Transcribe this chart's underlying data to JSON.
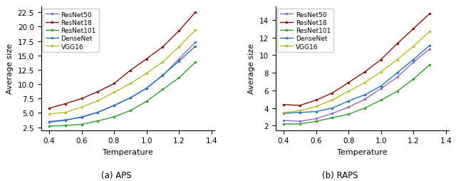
{
  "temperature": [
    0.4,
    0.5,
    0.6,
    0.7,
    0.8,
    0.9,
    1.0,
    1.1,
    1.2,
    1.3
  ],
  "aps": {
    "ResNet50": [
      3.5,
      3.8,
      4.2,
      5.1,
      6.3,
      7.6,
      9.3,
      11.5,
      14.4,
      17.3
    ],
    "ResNet18": [
      5.8,
      6.6,
      7.5,
      8.7,
      10.1,
      12.4,
      14.4,
      16.5,
      19.3,
      22.5
    ],
    "ResNet101": [
      2.7,
      2.8,
      3.0,
      3.6,
      4.3,
      5.4,
      7.0,
      9.1,
      11.1,
      13.8
    ],
    "DenseNet": [
      3.4,
      3.7,
      4.3,
      5.1,
      6.3,
      7.6,
      9.3,
      11.6,
      14.0,
      16.6
    ],
    "VGG16": [
      4.8,
      5.1,
      6.0,
      7.1,
      8.6,
      10.1,
      11.9,
      13.9,
      16.5,
      19.4
    ]
  },
  "raps": {
    "ResNet50": [
      2.6,
      2.5,
      2.8,
      3.4,
      4.1,
      5.0,
      6.2,
      7.5,
      9.2,
      10.7
    ],
    "ResNet18": [
      4.4,
      4.3,
      4.9,
      5.7,
      6.9,
      8.1,
      9.5,
      11.3,
      13.0,
      14.7
    ],
    "ResNet101": [
      2.2,
      2.2,
      2.5,
      2.9,
      3.3,
      4.0,
      4.9,
      5.9,
      7.3,
      8.9
    ],
    "DenseNet": [
      3.4,
      3.5,
      3.6,
      4.0,
      4.8,
      5.5,
      6.5,
      8.0,
      9.5,
      11.1
    ],
    "VGG16": [
      3.5,
      3.7,
      4.2,
      4.9,
      5.9,
      6.9,
      8.1,
      9.5,
      11.0,
      12.7
    ]
  },
  "colors": {
    "ResNet50": "#9467bd",
    "ResNet18": "#8c0d0d",
    "ResNet101": "#2ca02c",
    "DenseNet": "#1f77b4",
    "VGG16": "#bcbd22"
  },
  "xlabel": "Temperature",
  "ylabel": "Average size",
  "caption_a": "(a) APS",
  "caption_b": "(b) RAPS",
  "xlim": [
    0.35,
    1.42
  ],
  "xticks": [
    0.4,
    0.6,
    0.8,
    1.0,
    1.2,
    1.4
  ],
  "aps_ylim": [
    2.0,
    23.5
  ],
  "raps_ylim": [
    1.5,
    15.5
  ],
  "aps_yticks": [
    2.5,
    5.0,
    7.5,
    10.0,
    12.5,
    15.0,
    17.5,
    20.0,
    22.5
  ],
  "raps_yticks": [
    2,
    4,
    6,
    8,
    10,
    12,
    14
  ],
  "legend_fontsize": 6.5,
  "tick_fontsize": 7.5,
  "axis_label_fontsize": 8,
  "caption_fontsize": 8.5
}
